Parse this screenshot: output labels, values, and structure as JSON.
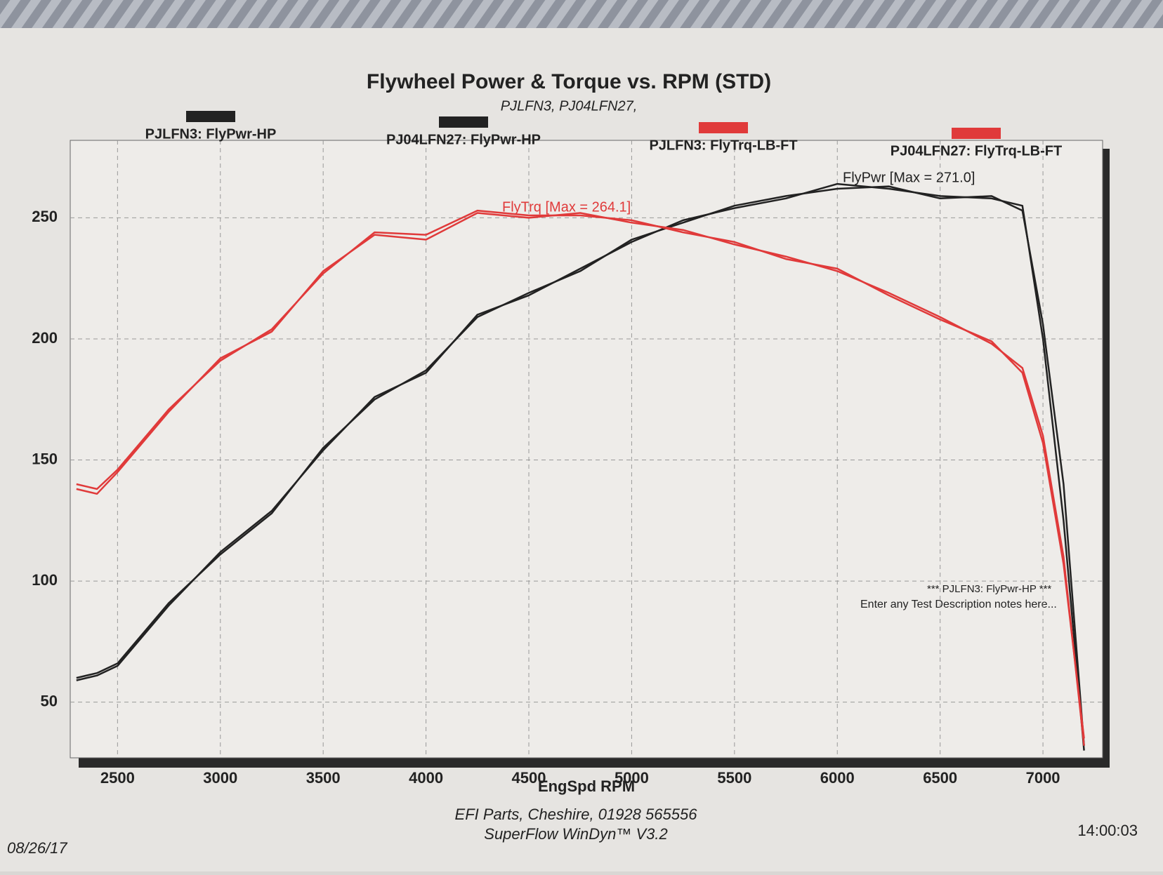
{
  "chart_data": {
    "type": "line",
    "title": "Flywheel Power & Torque vs. RPM (STD)",
    "subtitle": "PJLFN3, PJ04LFN27,",
    "x_label": "EngSpd RPM",
    "x": [
      2300,
      2400,
      2500,
      2750,
      3000,
      3250,
      3500,
      3750,
      4000,
      4250,
      4500,
      4750,
      5000,
      5250,
      5500,
      5750,
      6000,
      6250,
      6500,
      6750,
      6900,
      7000,
      7100,
      7200
    ],
    "series": [
      {
        "name": "PJLFN3: FlyPwr-HP",
        "color": "#222222",
        "values": [
          59,
          61,
          65,
          90,
          112,
          129,
          154,
          176,
          186,
          210,
          218,
          229,
          240,
          249,
          254,
          258,
          264,
          262,
          259,
          258,
          255,
          200,
          125,
          30
        ]
      },
      {
        "name": "PJ04LFN27: FlyPwr-HP",
        "color": "#222222",
        "values": [
          60,
          62,
          66,
          91,
          111,
          128,
          155,
          175,
          187,
          209,
          219,
          228,
          241,
          248,
          255,
          259,
          262,
          263,
          258,
          259,
          253,
          206,
          140,
          32
        ]
      },
      {
        "name": "PJLFN3: FlyTrq-LB-FT",
        "color": "#e03a3a",
        "values": [
          140,
          138,
          146,
          171,
          191,
          204,
          227,
          244,
          243,
          253,
          251,
          251,
          249,
          244,
          240,
          233,
          229,
          218,
          208,
          199,
          186,
          157,
          107,
          35
        ]
      },
      {
        "name": "PJ04LFN27: FlyTrq-LB-FT",
        "color": "#e03a3a",
        "values": [
          138,
          136,
          145,
          170,
          192,
          203,
          228,
          243,
          241,
          252,
          250,
          252,
          248,
          245,
          239,
          234,
          228,
          219,
          209,
          198,
          188,
          160,
          110,
          32
        ]
      }
    ],
    "xlim": [
      2270,
      7290
    ],
    "xticks": [
      2500,
      3000,
      3500,
      4000,
      4500,
      5000,
      5500,
      6000,
      6500,
      7000
    ],
    "ylim": [
      27,
      282
    ],
    "yticks": [
      50,
      100,
      150,
      200,
      250
    ],
    "grid": true,
    "annotations": [
      "FlyTrq [Max = 264.1]",
      "FlyPwr [Max = 271.0]",
      "*** PJLFN3: FlyPwr-HP ***",
      "Enter any Test Description notes here..."
    ],
    "footer": [
      "EFI Parts, Cheshire, 01928 565556",
      "SuperFlow WinDyn™ V3.2"
    ],
    "date": "08/26/17",
    "time": "14:00:03"
  }
}
